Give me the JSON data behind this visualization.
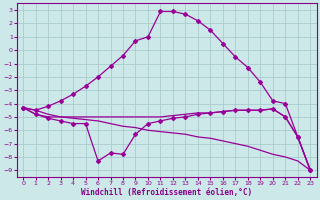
{
  "background_color": "#cce8e8",
  "grid_color": "#aacccc",
  "line_color": "#990099",
  "xlabel": "Windchill (Refroidissement éolien,°C)",
  "xlim": [
    -0.5,
    23.5
  ],
  "ylim": [
    -9.5,
    3.5
  ],
  "xticks": [
    0,
    1,
    2,
    3,
    4,
    5,
    6,
    7,
    8,
    9,
    10,
    11,
    12,
    13,
    14,
    15,
    16,
    17,
    18,
    19,
    20,
    21,
    22,
    23
  ],
  "yticks": [
    3,
    2,
    1,
    0,
    -1,
    -2,
    -3,
    -4,
    -5,
    -6,
    -7,
    -8,
    -9
  ],
  "series": [
    {
      "x": [
        0,
        1,
        2,
        3,
        4,
        5,
        6,
        7,
        8,
        9,
        10,
        11,
        12,
        13,
        14,
        15,
        16,
        17,
        18,
        19,
        20,
        21,
        22,
        23
      ],
      "y": [
        -4.3,
        -4.5,
        -4.8,
        -5.0,
        -5.1,
        -5.2,
        -5.3,
        -5.5,
        -5.7,
        -5.8,
        -6.0,
        -6.1,
        -6.2,
        -6.3,
        -6.5,
        -6.6,
        -6.8,
        -7.0,
        -7.2,
        -7.5,
        -7.8,
        -8.0,
        -8.3,
        -9.0
      ],
      "marker": false
    },
    {
      "x": [
        0,
        1,
        2,
        3,
        4,
        5,
        6,
        7,
        8,
        9,
        10,
        11,
        12,
        13,
        14,
        15,
        16,
        17,
        18,
        19,
        20,
        21,
        22,
        23
      ],
      "y": [
        -4.3,
        -4.8,
        -5.0,
        -5.0,
        -5.0,
        -5.0,
        -5.0,
        -5.0,
        -5.0,
        -5.0,
        -5.0,
        -5.0,
        -4.9,
        -4.8,
        -4.7,
        -4.7,
        -4.6,
        -4.5,
        -4.5,
        -4.5,
        -4.4,
        -5.0,
        -6.5,
        -9.0
      ],
      "marker": false
    },
    {
      "x": [
        0,
        1,
        2,
        3,
        4,
        5,
        6,
        7,
        8,
        9,
        10,
        11,
        12,
        13,
        14,
        15,
        16,
        17,
        18,
        19,
        20,
        21,
        22,
        23
      ],
      "y": [
        -4.3,
        -4.5,
        -4.2,
        -3.8,
        -3.3,
        -2.7,
        -2.0,
        -1.2,
        -0.4,
        0.7,
        1.0,
        2.9,
        2.9,
        2.7,
        2.2,
        1.5,
        0.5,
        -0.5,
        -1.3,
        -2.4,
        -3.8,
        -4.0,
        -6.5,
        -9.0
      ],
      "marker": true
    },
    {
      "x": [
        0,
        1,
        2,
        3,
        4,
        5,
        6,
        7,
        8,
        9,
        10,
        11,
        12,
        13,
        14,
        15,
        16,
        17,
        18,
        19,
        20,
        21,
        22,
        23
      ],
      "y": [
        -4.3,
        -4.8,
        -5.1,
        -5.3,
        -5.5,
        -5.5,
        -8.3,
        -7.7,
        -7.8,
        -6.3,
        -5.5,
        -5.3,
        -5.1,
        -5.0,
        -4.8,
        -4.7,
        -4.6,
        -4.5,
        -4.5,
        -4.5,
        -4.4,
        -5.0,
        -6.5,
        -9.0
      ],
      "marker": true
    }
  ],
  "font_color": "#880088",
  "tick_fontsize": 4.5,
  "xlabel_fontsize": 5.5
}
